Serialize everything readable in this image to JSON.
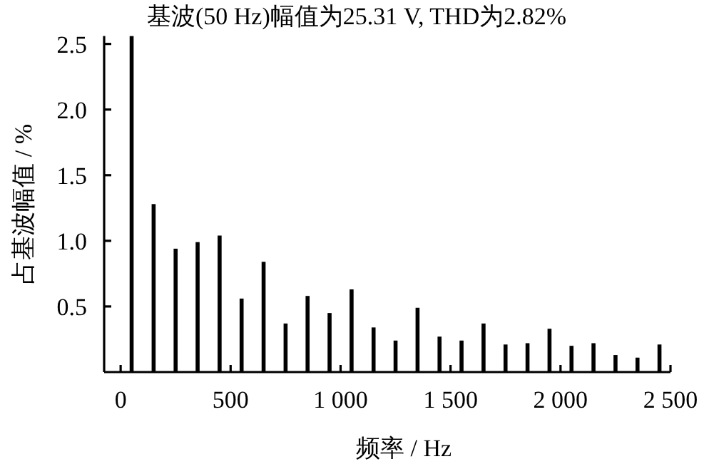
{
  "chart_data": {
    "type": "bar",
    "title": "基波(50 Hz)幅值为25.31 V, THD为2.82%",
    "xlabel": "频率 / Hz",
    "ylabel": "占基波幅值 / %",
    "color": "#000000",
    "x": [
      50,
      150,
      250,
      350,
      450,
      550,
      650,
      750,
      850,
      950,
      1050,
      1150,
      1250,
      1350,
      1450,
      1550,
      1650,
      1750,
      1850,
      1950,
      2050,
      2150,
      2250,
      2350,
      2450
    ],
    "values": [
      2.56,
      1.28,
      0.94,
      0.99,
      1.04,
      0.56,
      0.84,
      0.37,
      0.58,
      0.45,
      0.63,
      0.34,
      0.24,
      0.49,
      0.27,
      0.24,
      0.37,
      0.21,
      0.22,
      0.33,
      0.2,
      0.22,
      0.13,
      0.11,
      0.21
    ],
    "xlim": [
      -75,
      2500
    ],
    "ylim": [
      0,
      2.56
    ],
    "xticks": [
      0,
      {
        "value": 500,
        "label": "500"
      },
      {
        "value": 1000,
        "label": "1 000"
      },
      {
        "value": 1500,
        "label": "1 500"
      },
      {
        "value": 2000,
        "label": "2 000"
      },
      {
        "value": 2500,
        "label": "2 500"
      }
    ],
    "yticks": [
      {
        "value": 0.5,
        "label": "0.5"
      },
      {
        "value": 1.0,
        "label": "1.0"
      },
      {
        "value": 1.5,
        "label": "1.5"
      },
      {
        "value": 2.0,
        "label": "2.0"
      },
      {
        "value": 2.5,
        "label": "2.5"
      }
    ]
  }
}
